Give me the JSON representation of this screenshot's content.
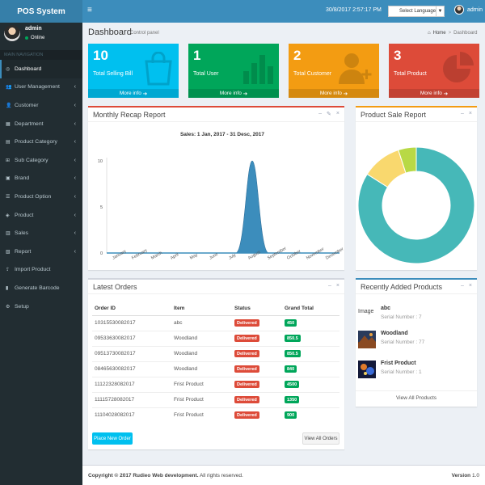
{
  "app": {
    "logo": "POS System",
    "datetime": "30/8/2017 2:57:17 PM",
    "language_select": "Select Language",
    "nav_user": "admin"
  },
  "sidebar": {
    "user": {
      "name": "admin",
      "status": "Online"
    },
    "header": "MAIN NAVIGATION",
    "items": [
      {
        "label": "Dashboard",
        "icon": "dashboard-icon",
        "glyph": "◎",
        "caret": false,
        "active": true
      },
      {
        "label": "User Management",
        "icon": "users-icon",
        "glyph": "👥",
        "caret": true
      },
      {
        "label": "Customer",
        "icon": "user-icon",
        "glyph": "👤",
        "caret": true
      },
      {
        "label": "Department",
        "icon": "building-icon",
        "glyph": "▦",
        "caret": true
      },
      {
        "label": "Product Category",
        "icon": "folder-icon",
        "glyph": "▤",
        "caret": true
      },
      {
        "label": "Sub Category",
        "icon": "cubes-icon",
        "glyph": "⊞",
        "caret": true
      },
      {
        "label": "Brand",
        "icon": "briefcase-icon",
        "glyph": "▣",
        "caret": true
      },
      {
        "label": "Product Option",
        "icon": "list-icon",
        "glyph": "☰",
        "caret": true
      },
      {
        "label": "Product",
        "icon": "cube-icon",
        "glyph": "◈",
        "caret": true
      },
      {
        "label": "Sales",
        "icon": "cart-icon",
        "glyph": "▥",
        "caret": true
      },
      {
        "label": "Report",
        "icon": "report-icon",
        "glyph": "▧",
        "caret": true
      },
      {
        "label": "Import Product",
        "icon": "upload-icon",
        "glyph": "⇪",
        "caret": false
      },
      {
        "label": "Generate Barcode",
        "icon": "barcode-icon",
        "glyph": "▮",
        "caret": false
      },
      {
        "label": "Setup",
        "icon": "gear-icon",
        "glyph": "⚙",
        "caret": false
      }
    ]
  },
  "page": {
    "title": "Dashboard",
    "subtitle": "Control panel",
    "breadcrumb": [
      "Home",
      "Dashboard"
    ]
  },
  "stats": [
    {
      "value": "10",
      "label": "Total Selling Bill",
      "more": "More info",
      "color": "#00c0ef",
      "icon": "shopping-bag-icon"
    },
    {
      "value": "1",
      "label": "Total User",
      "more": "More info",
      "color": "#00a65a",
      "icon": "bar-chart-icon"
    },
    {
      "value": "2",
      "label": "Total Customer",
      "more": "More info",
      "color": "#f39c12",
      "icon": "user-add-icon"
    },
    {
      "value": "3",
      "label": "Total Product",
      "more": "More info",
      "color": "#dd4b39",
      "icon": "pie-chart-icon"
    }
  ],
  "monthly": {
    "title": "Monthly Recap Report",
    "chart_title": "Sales: 1 Jan, 2017 - 31 Desc, 2017"
  },
  "product_sale": {
    "title": "Product Sale Report"
  },
  "orders": {
    "title": "Latest Orders",
    "columns": [
      "Order ID",
      "Item",
      "Status",
      "Grand Total"
    ],
    "rows": [
      [
        "10315530082017",
        "abc",
        "Delivered",
        "450"
      ],
      [
        "09533630082017",
        "Woodland",
        "Delivered",
        "850.5"
      ],
      [
        "09513730082017",
        "Woodland",
        "Delivered",
        "850.5"
      ],
      [
        "08465630082017",
        "Woodland",
        "Delivered",
        "840"
      ],
      [
        "11122328082017",
        "Frist Product",
        "Delivered",
        "4500"
      ],
      [
        "11115728082017",
        "Frist Product",
        "Delivered",
        "1350"
      ],
      [
        "11104028082017",
        "Frist Product",
        "Delivered",
        "900"
      ]
    ],
    "place_button": "Place New Order",
    "view_button": "View All Orders"
  },
  "recent_products": {
    "title": "Recently Added Products",
    "items": [
      {
        "image_label": "Image",
        "name": "abc",
        "serial": "Serial Number : 7"
      },
      {
        "name": "Woodland",
        "serial": "Serial Number : 77"
      },
      {
        "name": "Frist Product",
        "serial": "Serial Number : 1"
      }
    ],
    "view_all": "View All Products"
  },
  "footer": {
    "copyright_bold": "Copyright © 2017 Rudieo Web development.",
    "copyright_rest": " All rights reserved.",
    "version_label": "Version",
    "version": "1.0"
  },
  "chart_data": [
    {
      "type": "area",
      "title": "Sales: 1 Jan, 2017 - 31 Desc, 2017",
      "categories": [
        "January",
        "February",
        "March",
        "April",
        "May",
        "June",
        "July",
        "August",
        "September",
        "October",
        "November",
        "December"
      ],
      "values": [
        0,
        0,
        0,
        0,
        0,
        0,
        0,
        10,
        0,
        0,
        0,
        0
      ],
      "ylim": [
        0,
        10
      ],
      "yticks": [
        0,
        5,
        10
      ],
      "color": "#3c8dbc"
    },
    {
      "type": "pie",
      "donut": true,
      "values": [
        84,
        11,
        5
      ],
      "colors": [
        "#46b8b8",
        "#f9d86e",
        "#b8d945"
      ]
    }
  ]
}
